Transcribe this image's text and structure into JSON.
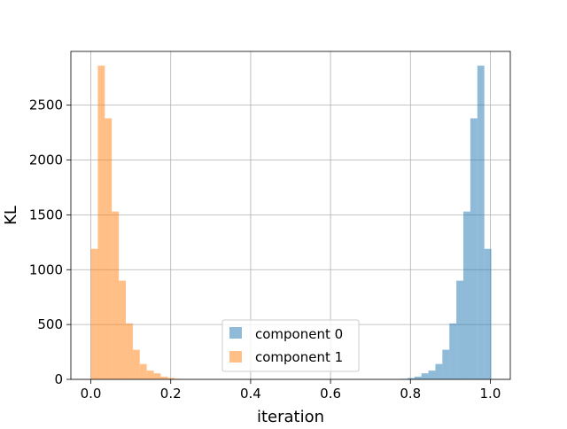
{
  "chart_data": {
    "type": "bar",
    "subtype": "histogram",
    "title": "",
    "xlabel": "iteration",
    "ylabel": "KL",
    "xlim": [
      -0.05,
      1.05
    ],
    "ylim": [
      0,
      2990
    ],
    "grid": true,
    "legend_position": "bottom-center",
    "x_ticks": [
      0.0,
      0.2,
      0.4,
      0.6,
      0.8,
      1.0
    ],
    "x_tick_labels": [
      "0.0",
      "0.2",
      "0.4",
      "0.6",
      "0.8",
      "1.0"
    ],
    "y_ticks": [
      0,
      500,
      1000,
      1500,
      2000,
      2500
    ],
    "y_tick_labels": [
      "0",
      "500",
      "1000",
      "1500",
      "2000",
      "2500"
    ],
    "bin_width": 0.0175,
    "series": [
      {
        "name": "component 0",
        "color": "#1f77b4",
        "opacity": 0.5,
        "bin_edges": [
          0.775,
          0.7925,
          0.81,
          0.8275,
          0.845,
          0.8625,
          0.88,
          0.8975,
          0.915,
          0.9325,
          0.95,
          0.9675,
          0.985
        ],
        "counts": [
          5,
          12,
          25,
          55,
          80,
          140,
          270,
          510,
          900,
          1530,
          2380,
          2860,
          1190
        ]
      },
      {
        "name": "component 1",
        "color": "#ff7f0e",
        "opacity": 0.5,
        "bin_edges": [
          0.0,
          0.0175,
          0.035,
          0.0525,
          0.07,
          0.0875,
          0.105,
          0.1225,
          0.14,
          0.1575,
          0.175,
          0.1925,
          0.21
        ],
        "counts": [
          1190,
          2860,
          2380,
          1530,
          900,
          510,
          270,
          140,
          80,
          55,
          25,
          12,
          5
        ]
      }
    ]
  }
}
